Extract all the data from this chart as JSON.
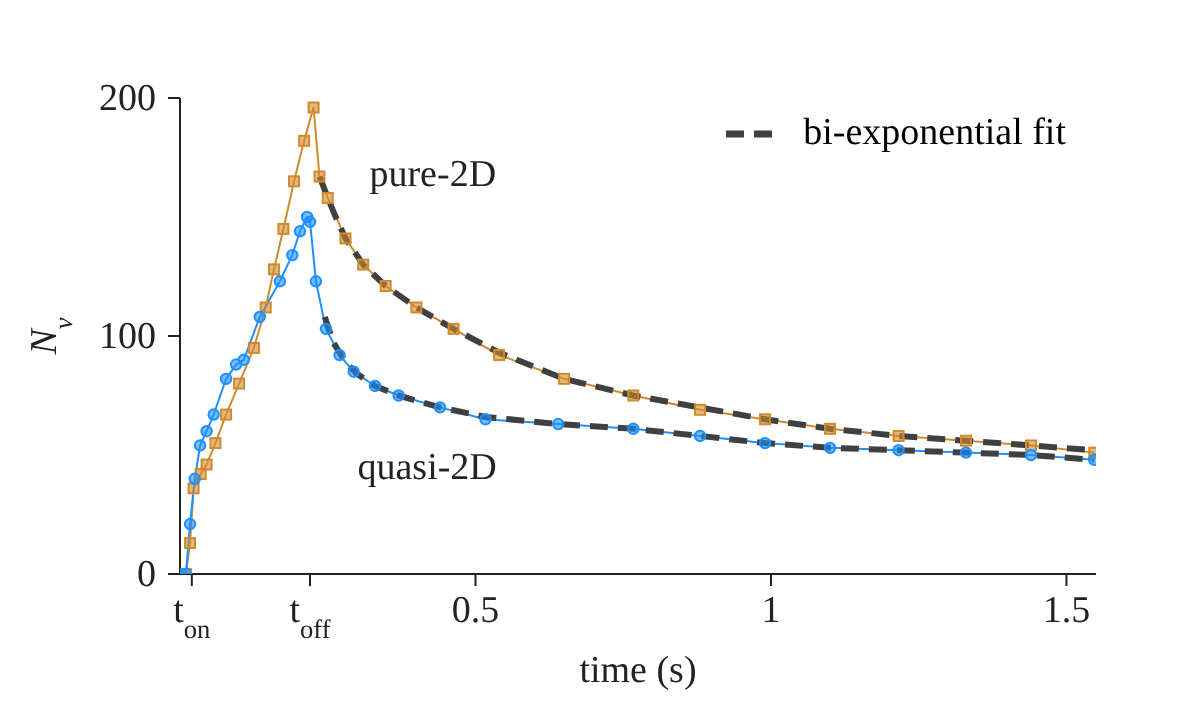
{
  "chart_data": {
    "type": "line",
    "xlabel": "time (s)",
    "ylabel": "N$_{v}$",
    "xlim": [
      0,
      1.55
    ],
    "ylim": [
      0,
      200
    ],
    "xticks": [
      {
        "value": 0.02,
        "label": "t$_{on}$"
      },
      {
        "value": 0.22,
        "label": "t$_{off}$"
      },
      0.5,
      1,
      1.5
    ],
    "yticks": [
      0,
      100,
      200
    ],
    "grid": false,
    "legend": "top right",
    "series": [
      {
        "name": "pure-2D",
        "color": "#d08a2e",
        "marker": "square",
        "line_style": "solid",
        "x": [
          0,
          0.01,
          0.017,
          0.023,
          0.035,
          0.045,
          0.06,
          0.078,
          0.1,
          0.125,
          0.145,
          0.159,
          0.175,
          0.193,
          0.21,
          0.226,
          0.236,
          0.25,
          0.28,
          0.31,
          0.348,
          0.4,
          0.463,
          0.54,
          0.65,
          0.767,
          0.88,
          0.99,
          1.1,
          1.216,
          1.33,
          1.44,
          1.547
        ],
        "values": [
          0,
          0,
          13,
          36,
          42,
          46,
          55,
          67,
          80,
          95,
          112,
          128,
          145,
          165,
          182,
          196,
          167,
          158,
          141,
          130,
          121,
          112,
          103,
          92,
          82,
          75,
          69,
          65,
          61,
          58,
          56,
          54,
          51
        ]
      },
      {
        "name": "quasi-2D",
        "color": "#1e90ff",
        "marker": "circle",
        "line_style": "solid",
        "x": [
          0,
          0.01,
          0.017,
          0.025,
          0.034,
          0.045,
          0.057,
          0.078,
          0.095,
          0.108,
          0.135,
          0.169,
          0.19,
          0.203,
          0.215,
          0.22,
          0.23,
          0.247,
          0.27,
          0.294,
          0.33,
          0.37,
          0.44,
          0.517,
          0.64,
          0.767,
          0.88,
          0.99,
          1.1,
          1.216,
          1.33,
          1.44,
          1.547
        ],
        "values": [
          0,
          0,
          21,
          40,
          54,
          60,
          67,
          82,
          88,
          90,
          108,
          123,
          134,
          144,
          150,
          148,
          123,
          103,
          92,
          85,
          79,
          75,
          70,
          65,
          63,
          61,
          58,
          55,
          53,
          52,
          51,
          50,
          48
        ]
      },
      {
        "name": "bi-exponential fit",
        "color": "#404040",
        "marker": "none",
        "line_style": "dashed",
        "x": [
          0.236,
          0.26,
          0.28,
          0.31,
          0.348,
          0.4,
          0.463,
          0.54,
          0.65,
          0.767,
          0.88,
          0.99,
          1.1,
          1.216,
          1.33,
          1.44,
          1.547
        ],
        "values": [
          167,
          152,
          141,
          130,
          121,
          112,
          103,
          93,
          82,
          75,
          70,
          65,
          61,
          58,
          56,
          54,
          52
        ]
      },
      {
        "color": "#404040",
        "marker": "none",
        "line_style": "dashed",
        "x": [
          0.245,
          0.26,
          0.28,
          0.3,
          0.33,
          0.37,
          0.44,
          0.517,
          0.64,
          0.767,
          0.88,
          0.99,
          1.1,
          1.216,
          1.33,
          1.44,
          1.547
        ],
        "values": [
          108,
          97,
          89,
          84,
          79,
          75,
          70,
          66,
          63,
          61,
          58,
          55,
          53,
          52,
          51,
          50,
          48
        ]
      }
    ]
  }
}
